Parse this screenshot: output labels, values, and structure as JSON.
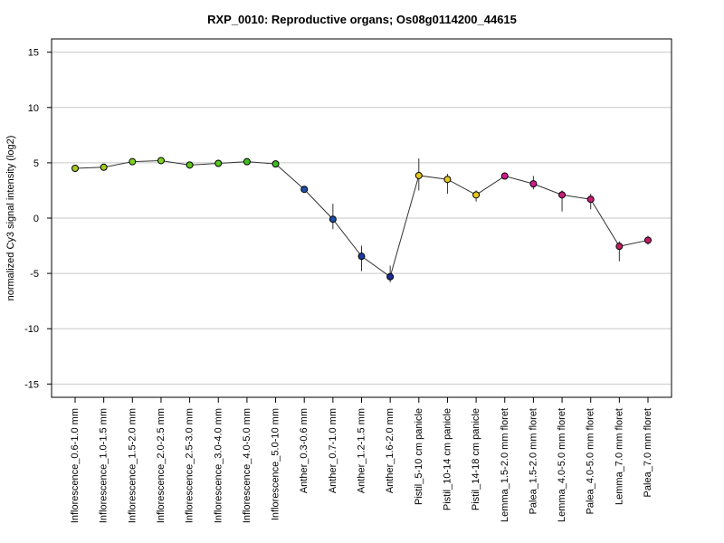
{
  "chart_data": {
    "type": "line",
    "title": "RXP_0010: Reproductive organs; Os08g0114200_44615",
    "xlabel": "",
    "ylabel": "normalized Cy3 signal intensity (log2)",
    "ylim": [
      -16.2,
      16.2
    ],
    "yticks": [
      -15,
      -10,
      -5,
      0,
      5,
      10,
      15
    ],
    "grid": true,
    "categories": [
      "Inflorescence_0.6-1.0 mm",
      "Inflorescence_1.0-1.5 mm",
      "Inflorescence_1.5-2.0 mm",
      "Inflorescence_2.0-2.5 mm",
      "Inflorescence_2.5-3.0 mm",
      "Inflorescence_3.0-4.0 mm",
      "Inflorescence_4.0-5.0 mm",
      "Inflorescence_5.0-10 mm",
      "Anther_0.3-0.6 mm",
      "Anther_0.7-1.0 mm",
      "Anther_1.2-1.5 mm",
      "Anther_1.6-2.0 mm",
      "Pistil_5-10 cm panicle",
      "Pistil_10-14 cm panicle",
      "Pistil_14-18 cm panicle",
      "Lemma_1.5-2.0 mm floret",
      "Palea_1.5-2.0 mm floret",
      "Lemma_4.0-5.0 mm floret",
      "Palea_4.0-5.0 mm floret",
      "Lemma_7.0 mm floret",
      "Palea_7.0 mm floret"
    ],
    "values": [
      4.5,
      4.6,
      5.1,
      5.2,
      4.8,
      4.95,
      5.1,
      4.9,
      2.6,
      -0.1,
      -3.45,
      -5.3,
      3.85,
      3.5,
      2.1,
      3.8,
      3.1,
      2.1,
      1.7,
      -2.55,
      -2.0
    ],
    "error_low": [
      4.4,
      4.5,
      5.0,
      5.1,
      4.7,
      4.85,
      5.0,
      4.8,
      2.4,
      -1.0,
      -4.8,
      -5.8,
      2.5,
      2.2,
      1.5,
      3.6,
      2.6,
      0.6,
      0.8,
      -3.9,
      -2.4
    ],
    "error_high": [
      4.6,
      4.7,
      5.2,
      5.3,
      4.9,
      5.05,
      5.2,
      5.0,
      2.8,
      1.3,
      -2.5,
      -4.3,
      5.4,
      4.0,
      2.5,
      4.0,
      3.8,
      2.5,
      2.2,
      -2.1,
      -1.6
    ],
    "point_colors": [
      "#a5c81e",
      "#a5c81e",
      "#7ed321",
      "#7ed321",
      "#5cc81e",
      "#5cc81e",
      "#3cbf1e",
      "#3cbf1e",
      "#1e4fa8",
      "#1e4fa8",
      "#1e3aa0",
      "#1e2a98",
      "#e6c81e",
      "#e6c81e",
      "#e6c81e",
      "#d01e8c",
      "#d01e8c",
      "#c81e78",
      "#c81e78",
      "#c01e64",
      "#c01e64"
    ],
    "line_color": "#333333"
  }
}
